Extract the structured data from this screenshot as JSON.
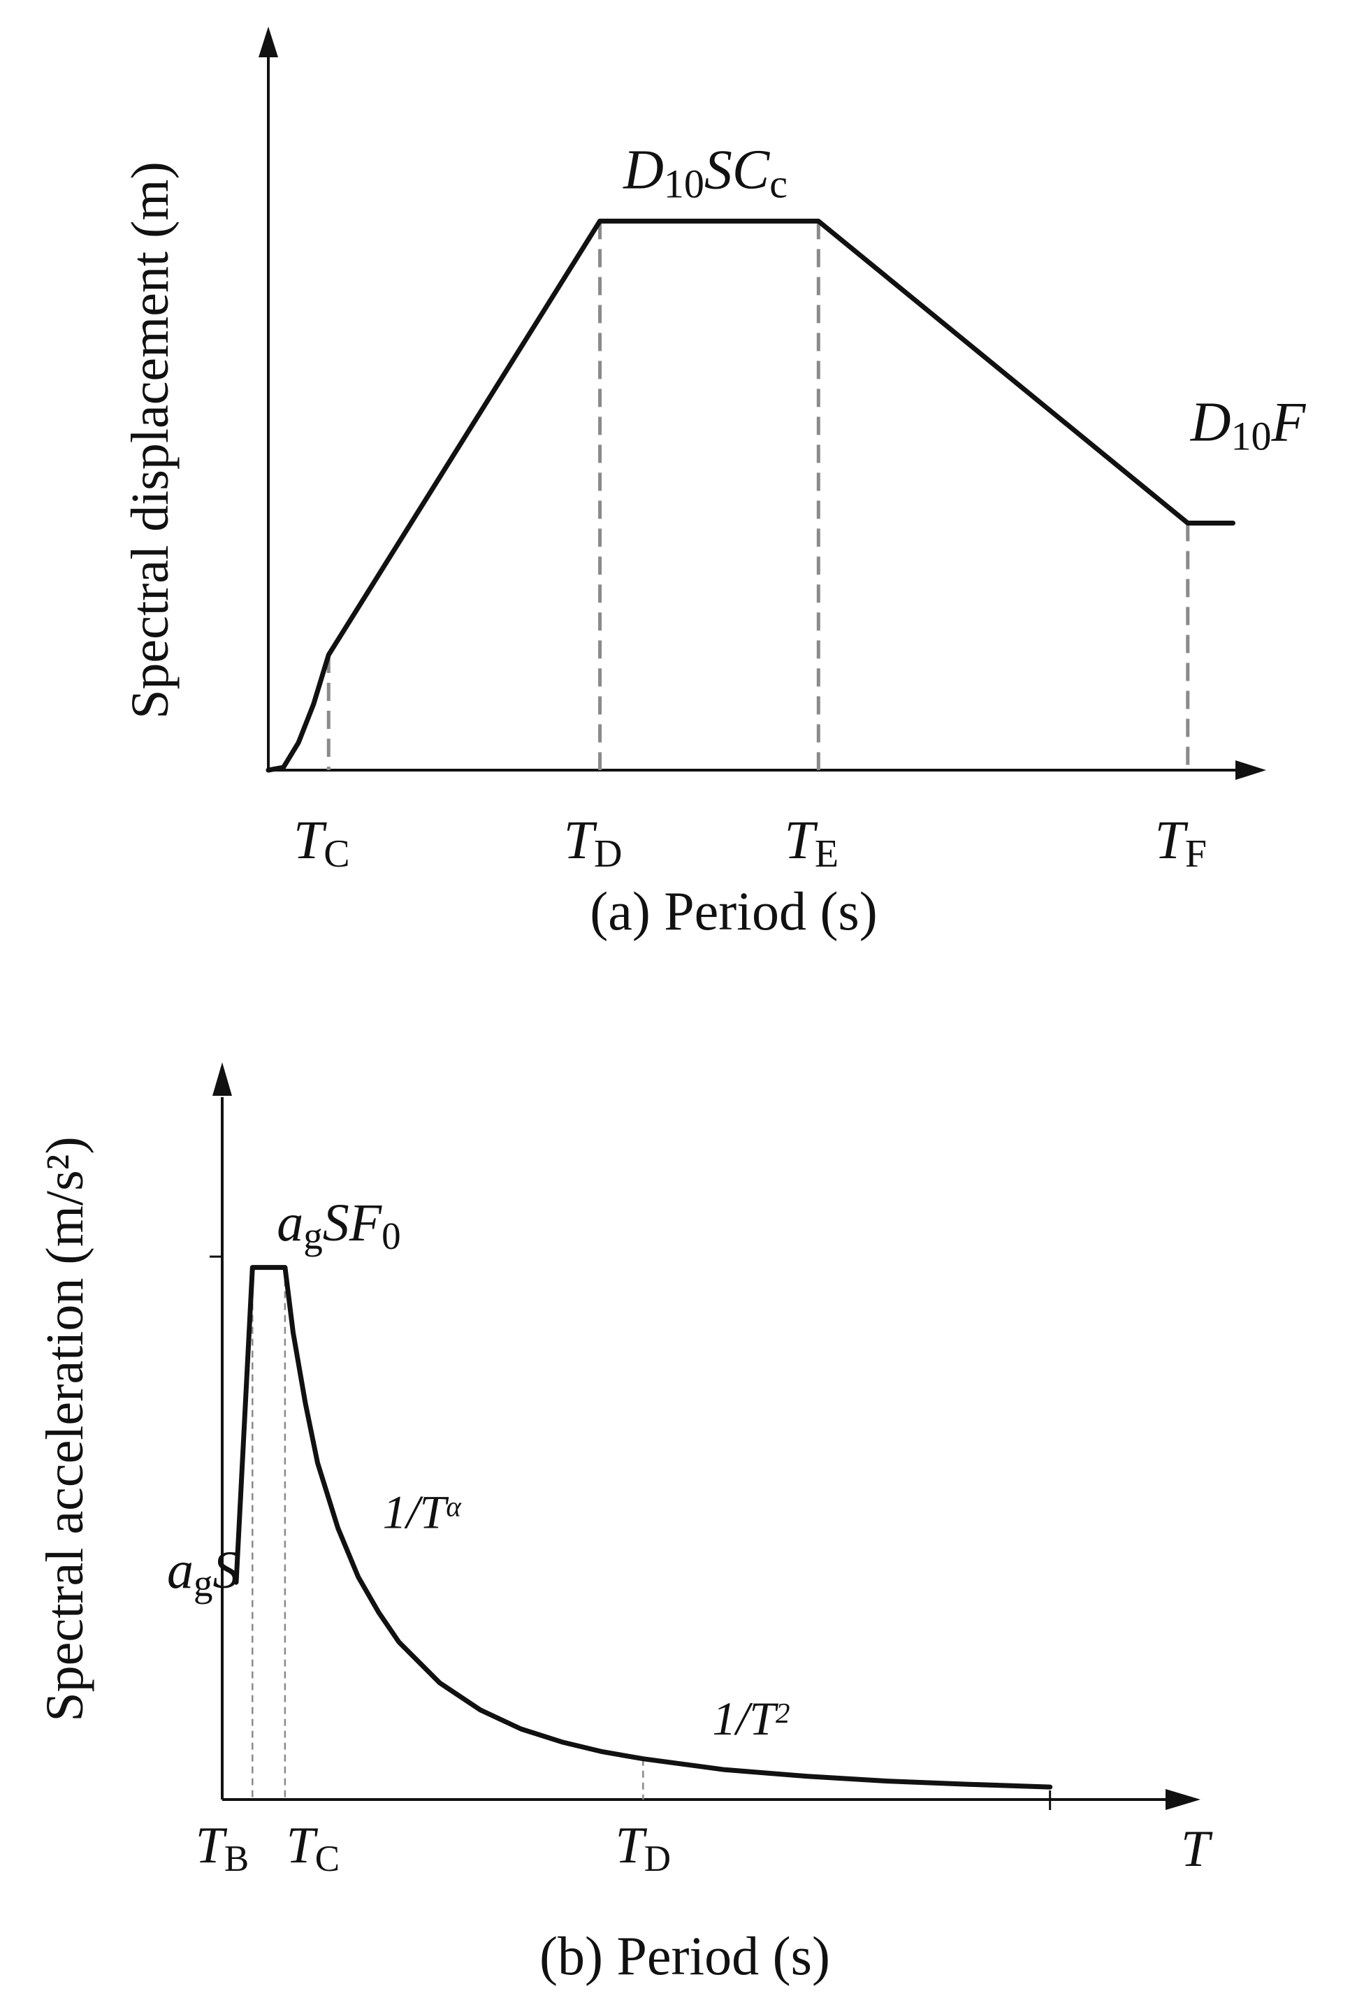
{
  "chart_data": [
    {
      "type": "line",
      "panel": "a",
      "xlabel": "(a) Period (s)",
      "ylabel": "Spectral displacement (m)",
      "x_ticks": [
        {
          "sym": "T",
          "sub": "C",
          "x": 0.08
        },
        {
          "sym": "T",
          "sub": "D",
          "x": 0.44
        },
        {
          "sym": "T",
          "sub": "E",
          "x": 0.73
        },
        {
          "sym": "T",
          "sub": "F",
          "x": 1.22
        }
      ],
      "series": [
        {
          "points": [
            [
              0.0,
              0.0
            ],
            [
              0.02,
              0.005
            ],
            [
              0.04,
              0.05
            ],
            [
              0.06,
              0.12
            ],
            [
              0.08,
              0.21
            ],
            [
              0.44,
              1.0
            ],
            [
              0.73,
              1.0
            ],
            [
              1.22,
              0.45
            ],
            [
              1.28,
              0.45
            ]
          ]
        }
      ],
      "xlim": [
        0,
        1.35
      ],
      "ylim": [
        0,
        1.25
      ],
      "annotations": [
        {
          "id": "plateau",
          "parts": [
            {
              "t": "D",
              "i": true
            },
            {
              "t": "10",
              "sub": true
            },
            {
              "t": "SC",
              "i": true
            },
            {
              "t": "c",
              "sub": true
            }
          ],
          "x": 0.58,
          "y": 1.06
        },
        {
          "id": "tail",
          "parts": [
            {
              "t": "D",
              "i": true
            },
            {
              "t": "10",
              "sub": true
            },
            {
              "t": "F",
              "i": true
            }
          ],
          "x": 1.3,
          "y": 0.6
        }
      ]
    },
    {
      "type": "line",
      "panel": "b",
      "xlabel": "(b) Period (s)",
      "ylabel": "Spectral acceleration (m/s²)",
      "x_end_label": "T",
      "x_ticks": [
        {
          "sym": "T",
          "sub": "B",
          "x": 0.0
        },
        {
          "sym": "T",
          "sub": "C",
          "x": 0.12
        },
        {
          "sym": "T",
          "sub": "D",
          "x": 1.0
        }
      ],
      "y_tick_value": 1.0,
      "series": [
        {
          "points": [
            [
              0.0,
              0.4
            ],
            [
              0.04,
              0.98
            ],
            [
              0.12,
              0.98
            ],
            [
              0.14,
              0.86
            ],
            [
              0.17,
              0.73
            ],
            [
              0.2,
              0.62
            ],
            [
              0.25,
              0.5
            ],
            [
              0.3,
              0.41
            ],
            [
              0.35,
              0.345
            ],
            [
              0.4,
              0.29
            ],
            [
              0.5,
              0.215
            ],
            [
              0.6,
              0.165
            ],
            [
              0.7,
              0.13
            ],
            [
              0.8,
              0.106
            ],
            [
              0.9,
              0.088
            ],
            [
              1.0,
              0.075
            ],
            [
              1.2,
              0.055
            ],
            [
              1.4,
              0.043
            ],
            [
              1.6,
              0.034
            ],
            [
              1.8,
              0.028
            ],
            [
              2.0,
              0.023
            ]
          ]
        }
      ],
      "xlim": [
        0,
        2.15
      ],
      "ylim": [
        0,
        1.3
      ],
      "annotations": [
        {
          "id": "peak",
          "parts": [
            {
              "t": "a",
              "i": true
            },
            {
              "t": "g",
              "sub": true
            },
            {
              "t": "SF",
              "i": true
            },
            {
              "t": "0",
              "sub": true
            }
          ],
          "x": 0.1,
          "y": 1.03
        },
        {
          "id": "start",
          "parts": [
            {
              "t": "a",
              "i": true
            },
            {
              "t": "g",
              "sub": true
            },
            {
              "t": "S",
              "i": true
            }
          ],
          "x": -0.17,
          "y": 0.39
        },
        {
          "id": "decay-alpha",
          "parts": [
            {
              "t": "1/T",
              "i": true
            },
            {
              "t": "α",
              "sup": true,
              "i": true
            }
          ],
          "x": 0.36,
          "y": 0.5
        },
        {
          "id": "decay-square",
          "parts": [
            {
              "t": "1/T",
              "i": true
            },
            {
              "t": "2",
              "sup": true,
              "i": true
            }
          ],
          "x": 1.17,
          "y": 0.12
        }
      ]
    }
  ]
}
